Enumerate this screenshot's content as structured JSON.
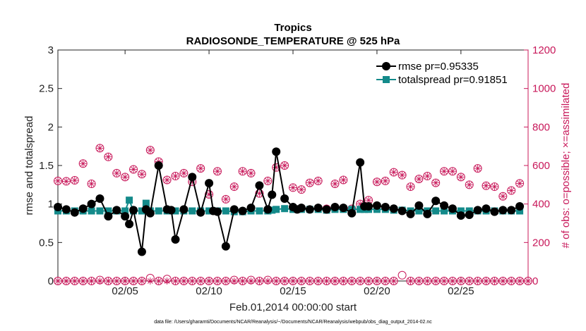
{
  "chart_data": {
    "type": "line",
    "title": "Tropics",
    "subtitle": "RADIOSONDE_TEMPERATURE @ 525 hPa",
    "xlabel": "Feb.01,2014 00:00:00 start",
    "ylabel_left": "rmse and totalspread",
    "ylabel_right": "# of obs: o=possible; ×=assimilated",
    "footnote": "data file: /Users/gharamti/Documents/NCAR/Reanalysis/~/Documents/NCAR/Reanalysis/webpub/obs_diag_output_2014-02.nc",
    "xlim": [
      1,
      29
    ],
    "ylim_left": [
      0,
      3
    ],
    "ylim_right": [
      0,
      1200
    ],
    "x_ticks": [
      5,
      10,
      15,
      20,
      25
    ],
    "x_tick_labels": [
      "02/05",
      "02/10",
      "02/15",
      "02/20",
      "02/25"
    ],
    "y_ticks_left": [
      0,
      0.5,
      1,
      1.5,
      2,
      2.5,
      3
    ],
    "y_tick_labels_left": [
      "0",
      "0.5",
      "1",
      "1.5",
      "2",
      "2.5",
      "3"
    ],
    "y_ticks_right": [
      0,
      200,
      400,
      600,
      800,
      1000,
      1200
    ],
    "y_tick_labels_right": [
      "0",
      "200",
      "400",
      "600",
      "800",
      "1000",
      "1200"
    ],
    "legend_position": "top-right",
    "colors": {
      "rmse": "#000000",
      "totalspread": "#138a8a",
      "obs": "#c8185a",
      "axis": "#222222",
      "right_axis": "#c8185a"
    },
    "series": [
      {
        "name": "rmse pr=0.95335",
        "key": "rmse",
        "x": [
          1.0,
          1.5,
          2.0,
          2.5,
          3.0,
          3.5,
          4.0,
          4.5,
          5.0,
          5.25,
          5.5,
          6.0,
          6.25,
          6.5,
          7.0,
          7.5,
          7.75,
          8.0,
          8.5,
          9.0,
          9.5,
          10.0,
          10.25,
          10.5,
          11.0,
          11.5,
          12.0,
          12.5,
          13.0,
          13.5,
          13.75,
          14.0,
          14.5,
          15.0,
          15.25,
          15.5,
          16.0,
          16.5,
          17.0,
          17.5,
          18.0,
          18.5,
          19.0,
          19.25,
          19.5,
          20.0,
          20.5,
          21.0,
          21.5,
          22.0,
          22.5,
          23.0,
          23.5,
          24.0,
          24.5,
          25.0,
          25.5,
          26.0,
          26.5,
          27.0,
          27.5,
          28.0,
          28.5
        ],
        "values": [
          0.96,
          0.93,
          0.89,
          0.94,
          1.0,
          1.07,
          0.84,
          0.92,
          0.84,
          0.74,
          0.92,
          0.38,
          0.93,
          0.88,
          1.5,
          0.93,
          0.92,
          0.54,
          0.93,
          1.35,
          0.89,
          1.27,
          0.91,
          0.9,
          0.45,
          0.93,
          0.91,
          0.95,
          1.24,
          0.93,
          1.12,
          1.68,
          1.07,
          0.96,
          0.93,
          0.95,
          0.93,
          0.95,
          0.93,
          0.96,
          0.95,
          0.88,
          1.54,
          0.97,
          0.97,
          0.98,
          0.96,
          0.94,
          0.91,
          0.87,
          0.98,
          0.87,
          1.04,
          0.98,
          0.94,
          0.85,
          0.86,
          0.92,
          0.94,
          0.9,
          0.92,
          0.92,
          0.97
        ]
      },
      {
        "name": "totalspread pr=0.91851",
        "key": "totalspread",
        "x": [
          1.0,
          1.5,
          2.0,
          2.5,
          3.0,
          3.5,
          4.0,
          4.5,
          5.0,
          5.25,
          5.5,
          6.0,
          6.25,
          6.5,
          7.0,
          7.5,
          7.75,
          8.0,
          8.5,
          9.0,
          9.5,
          10.0,
          10.25,
          10.5,
          11.0,
          11.5,
          12.0,
          12.5,
          13.0,
          13.5,
          13.75,
          14.0,
          14.5,
          15.0,
          15.25,
          15.5,
          16.0,
          16.5,
          17.0,
          17.5,
          18.0,
          18.5,
          19.0,
          19.25,
          19.5,
          20.0,
          20.5,
          21.0,
          21.5,
          22.0,
          22.5,
          23.0,
          23.5,
          24.0,
          24.5,
          25.0,
          25.5,
          26.0,
          26.5,
          27.0,
          27.5,
          28.0,
          28.5
        ],
        "values": [
          0.91,
          0.91,
          0.91,
          0.91,
          0.91,
          0.91,
          0.91,
          0.91,
          0.91,
          1.05,
          0.91,
          0.91,
          1.01,
          0.91,
          0.91,
          0.91,
          0.91,
          0.91,
          0.91,
          0.91,
          0.91,
          0.91,
          0.91,
          0.91,
          0.91,
          0.9,
          0.9,
          0.91,
          0.91,
          0.91,
          0.92,
          0.93,
          0.94,
          0.93,
          0.93,
          0.93,
          0.93,
          0.93,
          0.92,
          0.93,
          0.93,
          0.93,
          0.93,
          0.93,
          0.93,
          0.93,
          0.93,
          0.92,
          0.92,
          0.91,
          0.91,
          0.91,
          0.91,
          0.91,
          0.91,
          0.91,
          0.91,
          0.91,
          0.91,
          0.91,
          0.91,
          0.91,
          0.91
        ]
      },
      {
        "name": "obs possible",
        "key": "obs_possible",
        "x": [
          1.0,
          1.5,
          2.0,
          2.5,
          3.0,
          3.5,
          4.0,
          4.5,
          5.0,
          5.5,
          6.0,
          6.5,
          7.0,
          7.5,
          8.0,
          8.5,
          9.0,
          9.5,
          10.0,
          10.5,
          11.0,
          11.5,
          12.0,
          12.5,
          13.0,
          13.5,
          14.0,
          14.5,
          15.0,
          15.5,
          16.0,
          16.5,
          17.0,
          17.5,
          18.0,
          18.5,
          19.0,
          19.5,
          20.0,
          20.5,
          21.0,
          21.5,
          22.0,
          22.5,
          23.0,
          23.5,
          24.0,
          24.5,
          25.0,
          25.5,
          26.0,
          26.5,
          27.0,
          27.5,
          28.0,
          28.5
        ],
        "values": [
          520,
          518,
          523,
          610,
          505,
          690,
          645,
          560,
          540,
          580,
          555,
          680,
          620,
          525,
          545,
          560,
          515,
          585,
          450,
          570,
          425,
          490,
          570,
          560,
          455,
          520,
          590,
          600,
          485,
          475,
          510,
          520,
          375,
          505,
          525,
          375,
          400,
          420,
          515,
          520,
          565,
          550,
          490,
          530,
          545,
          510,
          570,
          570,
          540,
          500,
          585,
          495,
          490,
          440,
          470,
          507
        ]
      },
      {
        "name": "obs assimilated",
        "key": "obs_assimilated",
        "x": [
          1.0,
          1.5,
          2.0,
          2.5,
          3.0,
          3.5,
          4.0,
          4.5,
          5.0,
          5.5,
          6.0,
          6.5,
          7.0,
          7.5,
          8.0,
          8.5,
          9.0,
          9.5,
          10.0,
          10.5,
          11.0,
          11.5,
          12.0,
          12.5,
          13.0,
          13.5,
          14.0,
          14.5,
          15.0,
          15.5,
          16.0,
          16.5,
          17.0,
          17.5,
          18.0,
          18.5,
          19.0,
          19.5,
          20.0,
          20.5,
          21.0,
          21.5,
          22.0,
          22.5,
          23.0,
          23.5,
          24.0,
          24.5,
          25.0,
          25.5,
          26.0,
          26.5,
          27.0,
          27.5,
          28.0,
          28.5
        ],
        "values": [
          520,
          518,
          523,
          610,
          505,
          690,
          645,
          560,
          540,
          580,
          555,
          680,
          620,
          525,
          545,
          560,
          515,
          585,
          450,
          570,
          425,
          490,
          570,
          560,
          455,
          520,
          590,
          600,
          485,
          475,
          510,
          520,
          375,
          505,
          525,
          375,
          400,
          420,
          515,
          520,
          565,
          550,
          490,
          530,
          545,
          510,
          570,
          570,
          540,
          500,
          585,
          495,
          490,
          440,
          470,
          507
        ]
      },
      {
        "name": "obs possible baseline",
        "key": "obs_baseline",
        "x": [
          1.0,
          1.5,
          2.0,
          2.5,
          3.0,
          3.5,
          4.0,
          4.5,
          5.0,
          5.5,
          6.0,
          6.5,
          7.0,
          7.5,
          8.0,
          8.5,
          9.0,
          9.5,
          10.0,
          10.5,
          11.0,
          11.5,
          12.0,
          12.5,
          13.0,
          13.5,
          14.0,
          14.5,
          15.0,
          15.5,
          16.0,
          16.5,
          17.0,
          17.5,
          18.0,
          18.5,
          19.0,
          19.5,
          20.0,
          20.5,
          21.0,
          21.5,
          22.0,
          22.5,
          23.0,
          23.5,
          24.0,
          24.5,
          25.0,
          25.5,
          26.0,
          26.5,
          27.0,
          27.5,
          28.0,
          28.5,
          29.0
        ],
        "values": [
          0,
          0,
          0,
          0,
          0,
          5,
          0,
          0,
          0,
          0,
          0,
          15,
          0,
          10,
          0,
          0,
          0,
          0,
          0,
          0,
          0,
          5,
          0,
          5,
          0,
          5,
          0,
          0,
          0,
          0,
          0,
          0,
          0,
          0,
          0,
          0,
          0,
          0,
          0,
          0,
          0,
          30,
          0,
          0,
          0,
          0,
          0,
          0,
          0,
          0,
          0,
          0,
          0,
          0,
          0,
          0,
          0
        ]
      }
    ]
  }
}
